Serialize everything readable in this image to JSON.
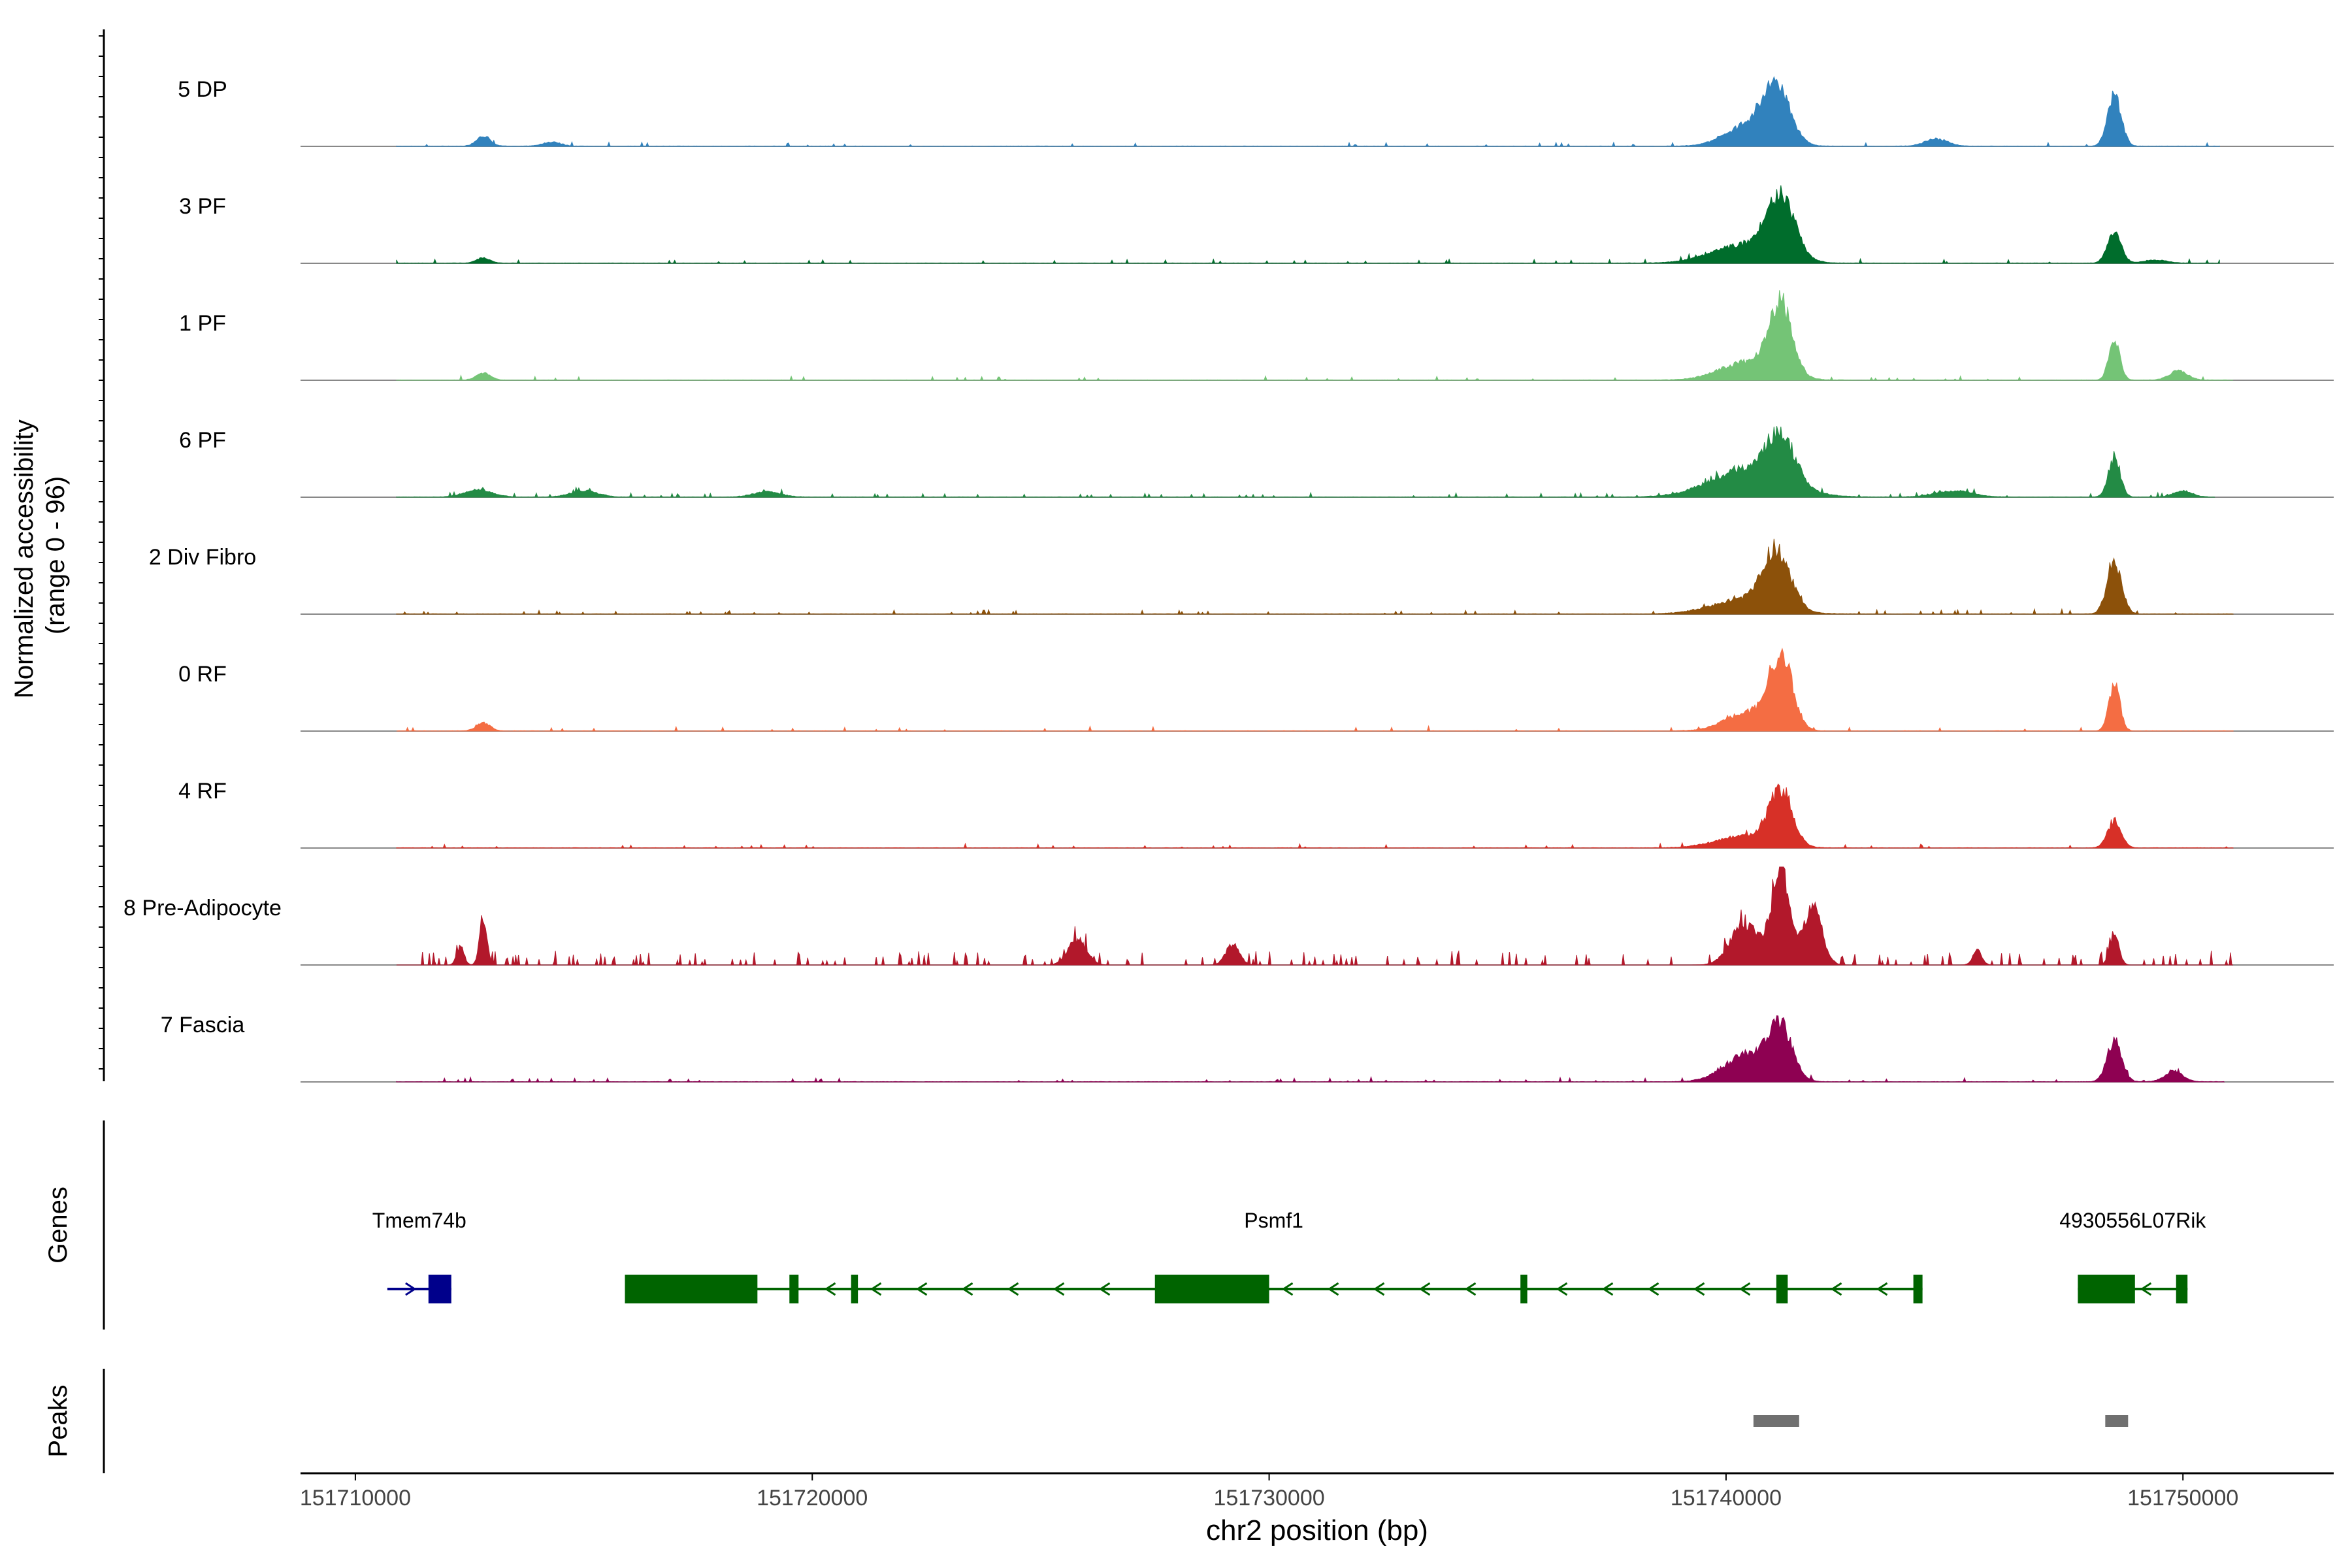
{
  "chart_data": {
    "type": "area",
    "title": "",
    "ylabel_line1": "Normalized accessibility",
    "ylabel_line2": "(range 0 - 96)",
    "genes_label": "Genes",
    "peaks_label": "Peaks",
    "xlabel": "chr2 position (bp)",
    "xlim": [
      151708800,
      151753300
    ],
    "ylim": [
      0,
      96
    ],
    "x_ticks": [
      151710000,
      151720000,
      151730000,
      151740000,
      151750000
    ],
    "x_tick_labels": [
      "151710000",
      "151720000",
      "151730000",
      "151740000",
      "151750000"
    ],
    "tracks": [
      {
        "name": "5 DP",
        "color": "#3182bd",
        "start": 151710900,
        "end": 151750800,
        "noise": 0.03,
        "sparse": false,
        "peaks": [
          [
            151712800,
            10,
            150
          ],
          [
            151714300,
            4,
            200
          ],
          [
            151740500,
            20,
            500
          ],
          [
            151741100,
            52,
            300
          ],
          [
            151744600,
            7,
            250
          ],
          [
            151748500,
            50,
            150
          ]
        ]
      },
      {
        "name": "3 PF",
        "color": "#006d2c",
        "start": 151710900,
        "end": 151750800,
        "noise": 0.03,
        "sparse": false,
        "peaks": [
          [
            151712800,
            5,
            150
          ],
          [
            151740400,
            18,
            700
          ],
          [
            151741200,
            60,
            300
          ],
          [
            151748500,
            30,
            150
          ],
          [
            151749400,
            3,
            250
          ]
        ]
      },
      {
        "name": "1 PF",
        "color": "#74c476",
        "start": 151710900,
        "end": 151751100,
        "noise": 0.03,
        "sparse": false,
        "peaks": [
          [
            151712800,
            7,
            150
          ],
          [
            151740500,
            18,
            600
          ],
          [
            151741200,
            68,
            250
          ],
          [
            151748500,
            40,
            120
          ],
          [
            151749900,
            9,
            200
          ]
        ]
      },
      {
        "name": "6 PF",
        "color": "#238b45",
        "start": 151710900,
        "end": 151750700,
        "noise": 0.06,
        "sparse": false,
        "peaks": [
          [
            151712700,
            7,
            300
          ],
          [
            151715000,
            6,
            300
          ],
          [
            151719000,
            5,
            300
          ],
          [
            151740500,
            28,
            800
          ],
          [
            151741200,
            45,
            300
          ],
          [
            151745000,
            6,
            400
          ],
          [
            151748500,
            38,
            130
          ],
          [
            151750000,
            6,
            200
          ]
        ]
      },
      {
        "name": "2 Div Fibro",
        "color": "#8c510a",
        "start": 151710900,
        "end": 151751100,
        "noise": 0.05,
        "sparse": false,
        "peaks": [
          [
            151740400,
            14,
            700
          ],
          [
            151741100,
            56,
            300
          ],
          [
            151748500,
            50,
            160
          ]
        ]
      },
      {
        "name": "0 RF",
        "color": "#f46d43",
        "start": 151710900,
        "end": 151751100,
        "noise": 0.03,
        "sparse": false,
        "peaks": [
          [
            151712800,
            8,
            150
          ],
          [
            151740500,
            18,
            500
          ],
          [
            151741200,
            70,
            250
          ],
          [
            151748500,
            46,
            120
          ]
        ]
      },
      {
        "name": "4 RF",
        "color": "#d73027",
        "start": 151710900,
        "end": 151751100,
        "noise": 0.04,
        "sparse": false,
        "peaks": [
          [
            151740400,
            12,
            600
          ],
          [
            151741200,
            54,
            250
          ],
          [
            151748500,
            26,
            150
          ]
        ]
      },
      {
        "name": "8 Pre-Adipocyte",
        "color": "#b2182b",
        "start": 151710900,
        "end": 151751100,
        "noise": 0.12,
        "sparse": true,
        "peaks": [
          [
            151712300,
            18,
            80
          ],
          [
            151712800,
            48,
            80
          ],
          [
            151725800,
            25,
            200
          ],
          [
            151729200,
            20,
            150
          ],
          [
            151740400,
            40,
            300
          ],
          [
            151741200,
            96,
            200
          ],
          [
            151741900,
            56,
            200
          ],
          [
            151745500,
            14,
            100
          ],
          [
            151748500,
            30,
            100
          ]
        ]
      },
      {
        "name": "7 Fascia",
        "color": "#8e0152",
        "start": 151710900,
        "end": 151750900,
        "noise": 0.06,
        "sparse": false,
        "peaks": [
          [
            151740500,
            28,
            500
          ],
          [
            151741200,
            48,
            250
          ],
          [
            151748500,
            40,
            160
          ],
          [
            151749800,
            10,
            200
          ]
        ]
      }
    ],
    "genes": [
      {
        "name": "Tmem74b",
        "color": "#00008b",
        "strand": "+",
        "start": 151710700,
        "end": 151712100,
        "exons": [
          [
            151711600,
            151712100
          ]
        ]
      },
      {
        "name": "Psmf1",
        "color": "#006400",
        "strand": "-",
        "start": 151715900,
        "end": 151744300,
        "exons": [
          [
            151715900,
            151718800
          ],
          [
            151719500,
            151719700
          ],
          [
            151720850,
            151721000
          ],
          [
            151727500,
            151730000
          ],
          [
            151735500,
            151735650
          ],
          [
            151741100,
            151741350
          ],
          [
            151744100,
            151744300
          ]
        ]
      },
      {
        "name": "4930556L07Rik",
        "color": "#006400",
        "strand": "-",
        "start": 151747700,
        "end": 151750100,
        "exons": [
          [
            151747700,
            151748950
          ],
          [
            151749850,
            151750100
          ]
        ]
      }
    ],
    "peaks": [
      [
        151740600,
        151741600
      ],
      [
        151748300,
        151748800
      ]
    ]
  }
}
